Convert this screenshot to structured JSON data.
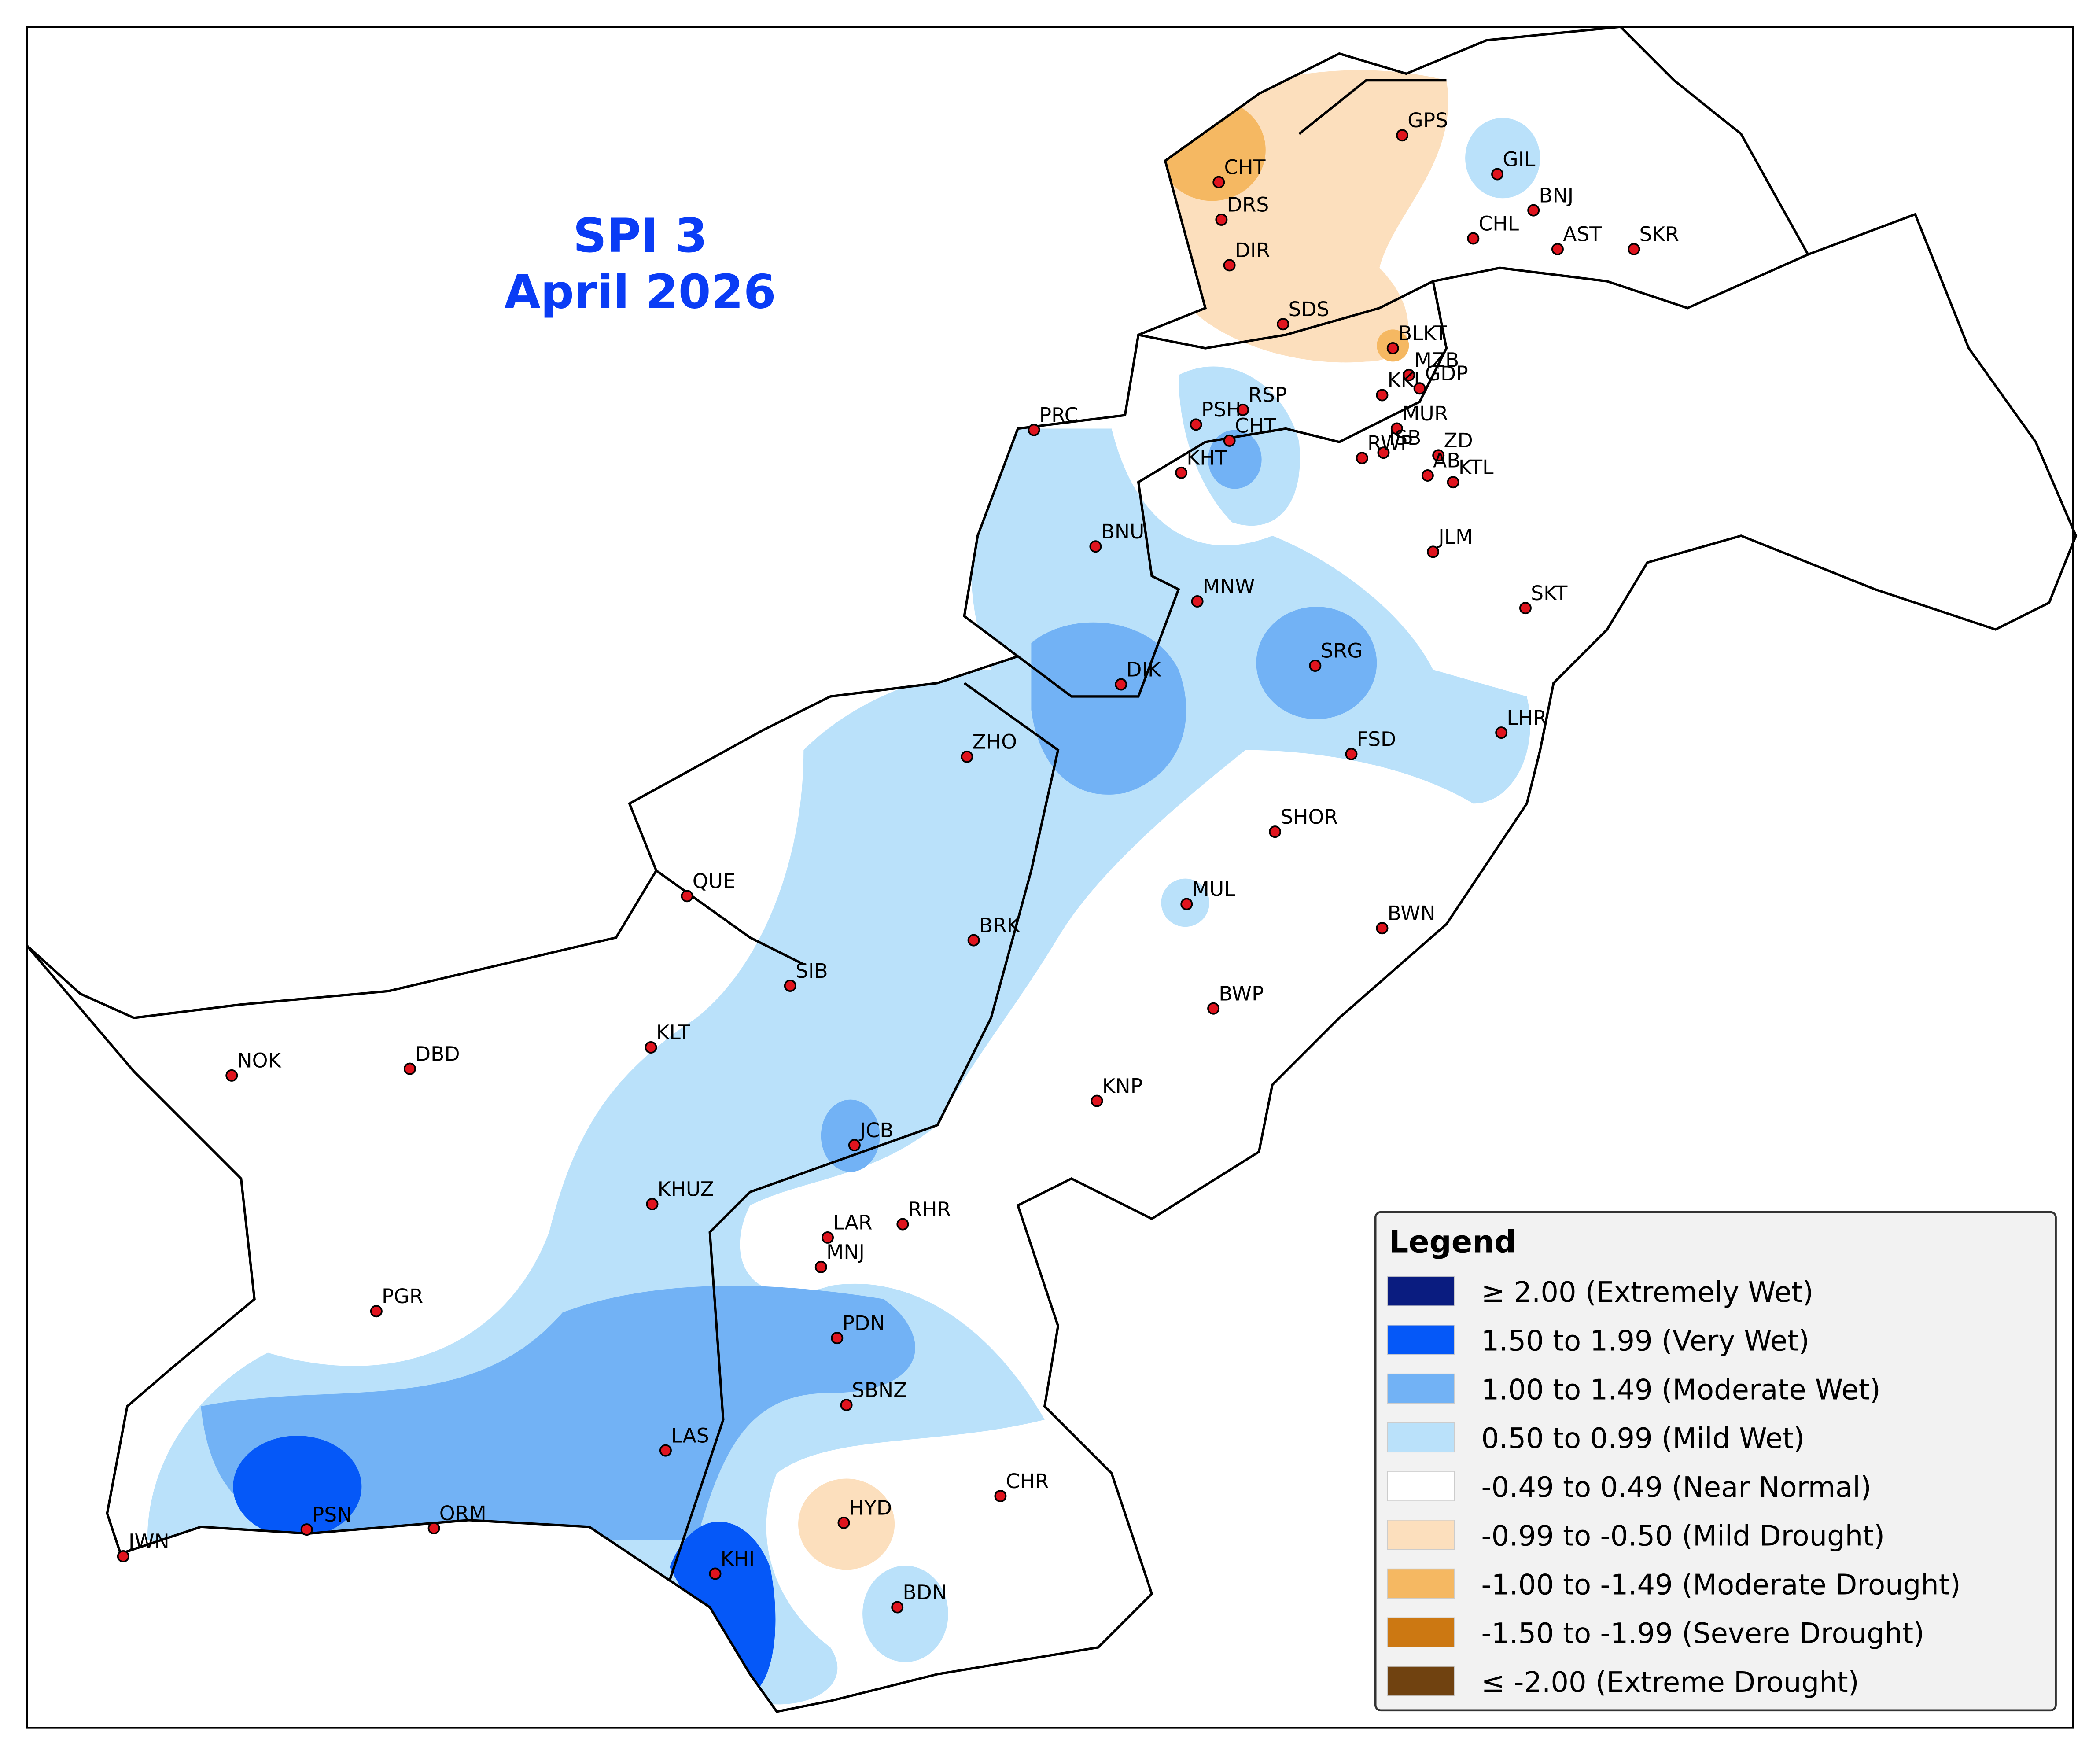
{
  "title": {
    "line1": "SPI 3",
    "line2": "April 2026"
  },
  "stations": [
    "GPS",
    "CHT",
    "GIL",
    "BNJ",
    "DRS",
    "CHL",
    "AST",
    "SKR",
    "DIR",
    "SDS",
    "BLKT",
    "MZB",
    "KKI",
    "GDP",
    "RSP",
    "PSH",
    "MUR",
    "CHT",
    "ISB",
    "ZD",
    "RWP",
    "AB",
    "KTL",
    "KHT",
    "PRC",
    "BNU",
    "JLM",
    "MNW",
    "SKT",
    "DIK",
    "SRG",
    "LHR",
    "FSD",
    "ZHO",
    "SHOR",
    "QUE",
    "MUL",
    "BWN",
    "BRK",
    "SIB",
    "BWP",
    "KLT",
    "NOK",
    "DBD",
    "KNP",
    "JCB",
    "KHUZ",
    "LAR",
    "RHR",
    "MNJ",
    "PGR",
    "PDN",
    "SBNZ",
    "LAS",
    "CHR",
    "HYD",
    "PSN",
    "ORM",
    "JWN",
    "KHI",
    "BDN"
  ],
  "legend": {
    "title": "Legend",
    "items": [
      {
        "label": "≥ 2.00 (Extremely Wet)",
        "color": "#0a1c80"
      },
      {
        "label": "1.50 to 1.99 (Very Wet)",
        "color": "#0558f8"
      },
      {
        "label": "1.00 to 1.49 (Moderate Wet)",
        "color": "#72b2f5"
      },
      {
        "label": "0.50 to 0.99 (Mild Wet)",
        "color": "#bae1fa"
      },
      {
        "label": "-0.49 to 0.49 (Near Normal)",
        "color": "#ffffff"
      },
      {
        "label": "-0.99 to -0.50 (Mild Drought)",
        "color": "#fcdfbd"
      },
      {
        "label": "-1.00 to -1.49 (Moderate Drought)",
        "color": "#f5b862"
      },
      {
        "label": "-1.50 to -1.99 (Severe Drought)",
        "color": "#cc7812"
      },
      {
        "label": "≤ -2.00 (Extreme Drought)",
        "color": "#704210"
      }
    ]
  }
}
